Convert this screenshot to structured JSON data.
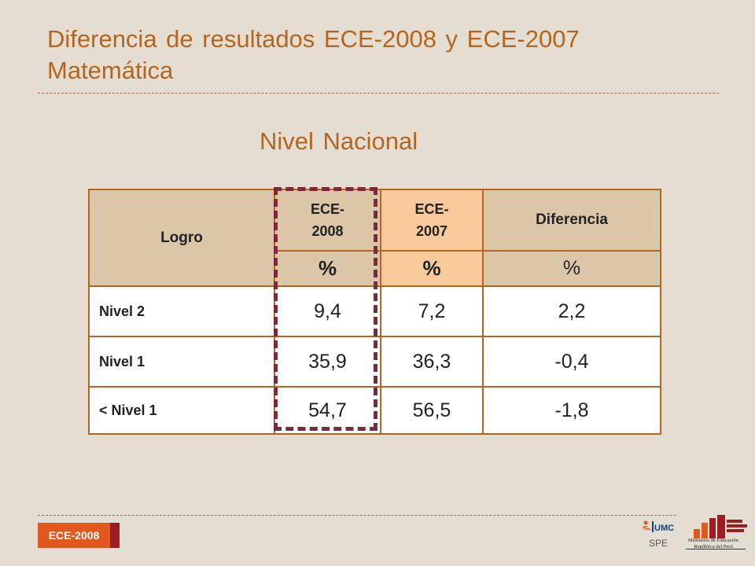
{
  "title": {
    "line1": "Diferencia de resultados ECE-2008 y ECE-2007",
    "line2": "Matemática"
  },
  "subtitle": "Nivel Nacional",
  "table": {
    "header": {
      "logro": "Logro",
      "ece2008": "ECE-2008",
      "ece2007": "ECE-2007",
      "diferencia": "Diferencia"
    },
    "units": {
      "ece2008": "%",
      "ece2007": "%",
      "diferencia": "%"
    },
    "rows": [
      {
        "label": "Nivel 2",
        "ece2008": "9,4",
        "ece2007": "7,2",
        "diferencia": "2,2"
      },
      {
        "label": "Nivel 1",
        "ece2008": "35,9",
        "ece2007": "36,3",
        "diferencia": "-0,4"
      },
      {
        "label": "< Nivel 1",
        "ece2008": "54,7",
        "ece2007": "56,5",
        "diferencia": "-1,8"
      }
    ]
  },
  "footer": {
    "badge": "ECE-2008",
    "umc_logo_text": "UMC",
    "spe": "SPE",
    "ministry_line1": "Ministerio de Educación",
    "ministry_line2": "República del Perú"
  },
  "colors": {
    "title": "#b5651d",
    "border": "#b5651d",
    "highlight": "#7a2a3a",
    "badge": "#e2571e"
  }
}
